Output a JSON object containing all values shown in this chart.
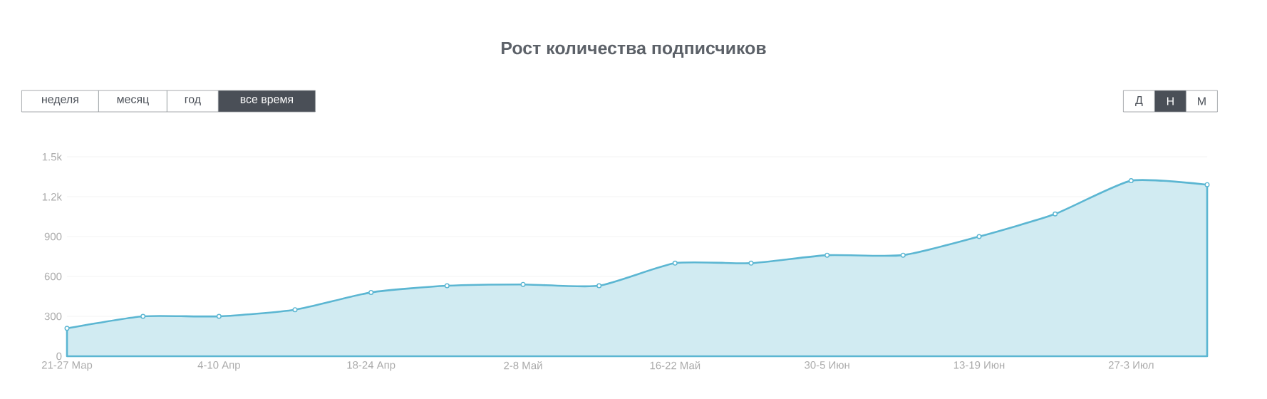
{
  "chart_data": {
    "type": "area",
    "title": "Рост количества подписчиков",
    "categories": [
      "21-27 Мар",
      null,
      "4-10 Апр",
      null,
      "18-24 Апр",
      null,
      "2-8 Май",
      null,
      "16-22 Май",
      null,
      "30-5 Июн",
      null,
      "13-19 Июн",
      null,
      "27-3 Июл",
      null
    ],
    "series": [
      {
        "color": "#5bb6d2",
        "values": [
          210,
          300,
          300,
          350,
          480,
          530,
          540,
          530,
          700,
          700,
          760,
          760,
          900,
          1070,
          1320,
          1290
        ]
      }
    ],
    "ylim": [
      0,
      1500
    ],
    "yticks": [
      0,
      300,
      600,
      900,
      {
        "value": 1200,
        "label": "1.2k"
      },
      {
        "value": 1500,
        "label": "1.5k"
      }
    ],
    "grid": "y",
    "marker": "circle",
    "annotations": [
      "неделя",
      "месяц",
      "год",
      "все время",
      "Д",
      "Н",
      "М"
    ]
  }
}
